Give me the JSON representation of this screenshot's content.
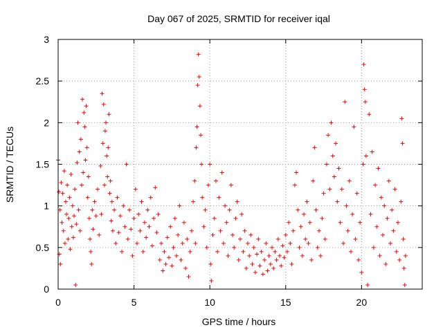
{
  "chart_data": {
    "type": "scatter",
    "title": "Day 067 of 2025, SRMTID for receiver iqal",
    "xlabel": "GPS time / hours",
    "ylabel": "SRMTID / TECUs",
    "xlim": [
      0,
      24
    ],
    "ylim": [
      0,
      3
    ],
    "xticks": [
      0,
      5,
      10,
      15,
      20
    ],
    "xtick_labels": [
      "0",
      "5",
      "10",
      "15",
      "20"
    ],
    "yticks": [
      0,
      0.5,
      1,
      1.5,
      2,
      2.5,
      3
    ],
    "ytick_labels": [
      "0",
      "0.5",
      "1",
      "1.5",
      "2",
      "2.5",
      "3"
    ],
    "grid": true,
    "marker": "plus",
    "series": [
      {
        "name": "SRMTID",
        "color": "#ff0000",
        "points": [
          [
            0.0,
            1.55
          ],
          [
            0.05,
            1.17
          ],
          [
            0.08,
            0.42
          ],
          [
            0.12,
            0.95
          ],
          [
            0.15,
            0.3
          ],
          [
            0.2,
            1.28
          ],
          [
            0.25,
            0.8
          ],
          [
            0.3,
            1.15
          ],
          [
            0.35,
            0.7
          ],
          [
            0.4,
            1.42
          ],
          [
            0.45,
            0.55
          ],
          [
            0.5,
            1.05
          ],
          [
            0.55,
            0.9
          ],
          [
            0.6,
            1.25
          ],
          [
            0.65,
            0.6
          ],
          [
            0.7,
            0.85
          ],
          [
            0.75,
            1.1
          ],
          [
            0.8,
            0.48
          ],
          [
            0.85,
            1.38
          ],
          [
            0.9,
            0.75
          ],
          [
            0.95,
            1.0
          ],
          [
            1.0,
            0.62
          ],
          [
            1.05,
            0.88
          ],
          [
            1.1,
            1.2
          ],
          [
            1.15,
            0.05
          ],
          [
            1.2,
            0.78
          ],
          [
            1.25,
            1.52
          ],
          [
            1.3,
            2.0
          ],
          [
            1.35,
            0.95
          ],
          [
            1.4,
            1.65
          ],
          [
            1.45,
            0.7
          ],
          [
            1.5,
            1.8
          ],
          [
            1.55,
            1.25
          ],
          [
            1.6,
            2.28
          ],
          [
            1.65,
            1.4
          ],
          [
            1.7,
            2.12
          ],
          [
            1.75,
            1.95
          ],
          [
            1.8,
            1.55
          ],
          [
            1.85,
            2.2
          ],
          [
            1.9,
            1.7
          ],
          [
            1.95,
            1.1
          ],
          [
            2.0,
            1.35
          ],
          [
            2.05,
            0.85
          ],
          [
            2.1,
            0.6
          ],
          [
            2.15,
            0.45
          ],
          [
            2.2,
            0.3
          ],
          [
            2.25,
            0.95
          ],
          [
            2.3,
            0.72
          ],
          [
            2.4,
            1.05
          ],
          [
            2.5,
            0.88
          ],
          [
            2.6,
            1.2
          ],
          [
            2.7,
            0.65
          ],
          [
            2.8,
            1.48
          ],
          [
            2.85,
            0.9
          ],
          [
            2.9,
            2.35
          ],
          [
            2.95,
            1.75
          ],
          [
            3.0,
            2.22
          ],
          [
            3.05,
            1.25
          ],
          [
            3.1,
            1.9
          ],
          [
            3.15,
            2.0
          ],
          [
            3.2,
            1.6
          ],
          [
            3.25,
            1.35
          ],
          [
            3.3,
            1.7
          ],
          [
            3.35,
            2.1
          ],
          [
            3.4,
            1.15
          ],
          [
            3.45,
            1.3
          ],
          [
            3.5,
            0.82
          ],
          [
            3.55,
            1.05
          ],
          [
            3.6,
            0.7
          ],
          [
            3.7,
            0.95
          ],
          [
            3.8,
            0.55
          ],
          [
            3.9,
            1.1
          ],
          [
            4.0,
            0.68
          ],
          [
            4.1,
            0.88
          ],
          [
            4.2,
            0.45
          ],
          [
            4.3,
            1.0
          ],
          [
            4.4,
            0.75
          ],
          [
            4.5,
            1.5
          ],
          [
            4.6,
            0.6
          ],
          [
            4.7,
            0.95
          ],
          [
            4.8,
            0.72
          ],
          [
            4.9,
            0.4
          ],
          [
            5.0,
            0.85
          ],
          [
            5.1,
            1.2
          ],
          [
            5.2,
            0.55
          ],
          [
            5.3,
            0.9
          ],
          [
            5.4,
            0.7
          ],
          [
            5.5,
            1.05
          ],
          [
            5.6,
            0.45
          ],
          [
            5.7,
            0.8
          ],
          [
            5.8,
            0.62
          ],
          [
            5.9,
            0.95
          ],
          [
            6.0,
            0.75
          ],
          [
            6.1,
            1.1
          ],
          [
            6.2,
            0.52
          ],
          [
            6.3,
            0.85
          ],
          [
            6.4,
            1.22
          ],
          [
            6.5,
            0.68
          ],
          [
            6.6,
            0.9
          ],
          [
            6.7,
            0.35
          ],
          [
            6.8,
            0.55
          ],
          [
            6.9,
            0.22
          ],
          [
            7.0,
            0.45
          ],
          [
            7.1,
            0.3
          ],
          [
            7.2,
            0.62
          ],
          [
            7.3,
            0.38
          ],
          [
            7.4,
            0.75
          ],
          [
            7.5,
            0.28
          ],
          [
            7.6,
            0.5
          ],
          [
            7.7,
            0.85
          ],
          [
            7.8,
            0.4
          ],
          [
            7.9,
            0.65
          ],
          [
            8.0,
            1.0
          ],
          [
            8.1,
            0.35
          ],
          [
            8.2,
            0.55
          ],
          [
            8.3,
            0.8
          ],
          [
            8.4,
            0.25
          ],
          [
            8.5,
            0.6
          ],
          [
            8.6,
            0.15
          ],
          [
            8.7,
            0.45
          ],
          [
            8.8,
            0.7
          ],
          [
            8.9,
            1.05
          ],
          [
            9.0,
            1.3
          ],
          [
            9.05,
            0.55
          ],
          [
            9.1,
            1.7
          ],
          [
            9.15,
            1.95
          ],
          [
            9.2,
            2.45
          ],
          [
            9.25,
            2.82
          ],
          [
            9.3,
            2.55
          ],
          [
            9.35,
            2.2
          ],
          [
            9.4,
            1.85
          ],
          [
            9.45,
            1.5
          ],
          [
            9.5,
            1.1
          ],
          [
            9.6,
            0.75
          ],
          [
            9.7,
            0.95
          ],
          [
            9.8,
            0.5
          ],
          [
            9.9,
            1.25
          ],
          [
            10.0,
            1.5
          ],
          [
            10.05,
            0.3
          ],
          [
            10.1,
            0.1
          ],
          [
            10.2,
            0.65
          ],
          [
            10.3,
            0.85
          ],
          [
            10.4,
            1.3
          ],
          [
            10.5,
            0.45
          ],
          [
            10.6,
            1.1
          ],
          [
            10.7,
            0.7
          ],
          [
            10.8,
            1.4
          ],
          [
            10.9,
            0.55
          ],
          [
            11.0,
            1.0
          ],
          [
            11.1,
            0.8
          ],
          [
            11.2,
            0.4
          ],
          [
            11.3,
            0.95
          ],
          [
            11.4,
            1.25
          ],
          [
            11.5,
            0.65
          ],
          [
            11.6,
            0.5
          ],
          [
            11.7,
            0.85
          ],
          [
            11.8,
            1.05
          ],
          [
            11.9,
            0.35
          ],
          [
            12.0,
            0.6
          ],
          [
            12.1,
            0.9
          ],
          [
            12.2,
            0.45
          ],
          [
            12.3,
            0.7
          ],
          [
            12.4,
            0.25
          ],
          [
            12.5,
            0.55
          ],
          [
            12.6,
            0.4
          ],
          [
            12.7,
            0.65
          ],
          [
            12.8,
            0.3
          ],
          [
            12.9,
            0.5
          ],
          [
            13.0,
            0.2
          ],
          [
            13.1,
            0.42
          ],
          [
            13.2,
            0.6
          ],
          [
            13.3,
            0.28
          ],
          [
            13.4,
            0.45
          ],
          [
            13.5,
            0.18
          ],
          [
            13.6,
            0.35
          ],
          [
            13.7,
            0.55
          ],
          [
            13.8,
            0.22
          ],
          [
            13.9,
            0.4
          ],
          [
            14.0,
            0.3
          ],
          [
            14.1,
            0.5
          ],
          [
            14.2,
            0.25
          ],
          [
            14.3,
            0.45
          ],
          [
            14.4,
            0.35
          ],
          [
            14.5,
            0.6
          ],
          [
            14.6,
            0.4
          ],
          [
            14.7,
            0.28
          ],
          [
            14.8,
            0.52
          ],
          [
            14.9,
            0.38
          ],
          [
            15.0,
            0.65
          ],
          [
            15.1,
            0.45
          ],
          [
            15.2,
            0.8
          ],
          [
            15.3,
            0.55
          ],
          [
            15.4,
            0.3
          ],
          [
            15.5,
            0.7
          ],
          [
            15.6,
            1.25
          ],
          [
            15.7,
            1.4
          ],
          [
            15.8,
            0.95
          ],
          [
            15.9,
            0.5
          ],
          [
            16.0,
            0.75
          ],
          [
            16.1,
            0.4
          ],
          [
            16.2,
            0.9
          ],
          [
            16.3,
            0.6
          ],
          [
            16.4,
            1.05
          ],
          [
            16.5,
            0.55
          ],
          [
            16.6,
            0.8
          ],
          [
            16.7,
            0.35
          ],
          [
            16.8,
            1.3
          ],
          [
            16.9,
            1.7
          ],
          [
            17.0,
            0.95
          ],
          [
            17.1,
            0.5
          ],
          [
            17.2,
            0.7
          ],
          [
            17.3,
            0.4
          ],
          [
            17.4,
            0.85
          ],
          [
            17.5,
            1.15
          ],
          [
            17.6,
            0.6
          ],
          [
            17.7,
            1.5
          ],
          [
            17.8,
            1.85
          ],
          [
            17.9,
            1.2
          ],
          [
            18.0,
            2.0
          ],
          [
            18.1,
            1.6
          ],
          [
            18.2,
            1.35
          ],
          [
            18.3,
            1.75
          ],
          [
            18.4,
            1.05
          ],
          [
            18.5,
            1.45
          ],
          [
            18.6,
            0.8
          ],
          [
            18.7,
            1.2
          ],
          [
            18.8,
            0.55
          ],
          [
            18.9,
            2.25
          ],
          [
            19.0,
            1.0
          ],
          [
            19.1,
            0.7
          ],
          [
            19.2,
            1.3
          ],
          [
            19.3,
            0.45
          ],
          [
            19.4,
            0.9
          ],
          [
            19.5,
            1.95
          ],
          [
            19.6,
            0.6
          ],
          [
            19.7,
            1.15
          ],
          [
            19.8,
            0.35
          ],
          [
            19.9,
            0.8
          ],
          [
            20.0,
            0.2
          ],
          [
            20.1,
            1.5
          ],
          [
            20.15,
            2.7
          ],
          [
            20.2,
            2.4
          ],
          [
            20.25,
            2.25
          ],
          [
            20.3,
            1.6
          ],
          [
            20.4,
            0.05
          ],
          [
            20.5,
            2.1
          ],
          [
            20.6,
            0.9
          ],
          [
            20.7,
            1.65
          ],
          [
            20.8,
            0.5
          ],
          [
            20.9,
            1.25
          ],
          [
            21.0,
            0.75
          ],
          [
            21.1,
            1.45
          ],
          [
            21.2,
            0.4
          ],
          [
            21.3,
            1.1
          ],
          [
            21.4,
            0.65
          ],
          [
            21.5,
            1.0
          ],
          [
            21.6,
            0.3
          ],
          [
            21.7,
            0.85
          ],
          [
            21.8,
            1.3
          ],
          [
            21.9,
            0.55
          ],
          [
            22.0,
            0.95
          ],
          [
            22.1,
            0.7
          ],
          [
            22.2,
            1.2
          ],
          [
            22.3,
            0.45
          ],
          [
            22.4,
            0.8
          ],
          [
            22.5,
            0.35
          ],
          [
            22.6,
            1.05
          ],
          [
            22.65,
            2.05
          ],
          [
            22.7,
            1.75
          ],
          [
            22.75,
            0.6
          ],
          [
            22.8,
            0.25
          ],
          [
            22.85,
            0.05
          ],
          [
            22.9,
            0.4
          ]
        ]
      }
    ]
  }
}
